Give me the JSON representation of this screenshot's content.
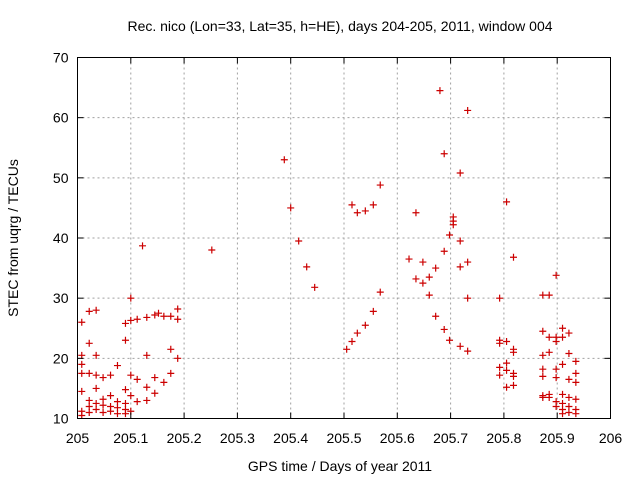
{
  "chart_data": {
    "type": "scatter",
    "title": "Rec. nico (Lon=33, Lat=35, h=HE), days 204-205, 2011, window 004",
    "xlabel": "GPS time / Days of year 2011",
    "ylabel": "STEC from uqrg / TECUs",
    "xlim": [
      205,
      206
    ],
    "ylim": [
      10,
      70
    ],
    "xticks": [
      "205",
      "205.1",
      "205.2",
      "205.3",
      "205.4",
      "205.5",
      "205.6",
      "205.7",
      "205.8",
      "205.9",
      "206"
    ],
    "yticks": [
      "10",
      "20",
      "30",
      "40",
      "50",
      "60",
      "70"
    ],
    "grid": true,
    "marker": "+",
    "color": "#cc0000",
    "points": [
      [
        205.008,
        26.0
      ],
      [
        205.008,
        20.5
      ],
      [
        205.008,
        19.0
      ],
      [
        205.008,
        17.5
      ],
      [
        205.008,
        14.5
      ],
      [
        205.008,
        11.2
      ],
      [
        205.008,
        10.5
      ],
      [
        205.022,
        27.8
      ],
      [
        205.022,
        22.5
      ],
      [
        205.022,
        17.5
      ],
      [
        205.022,
        13.0
      ],
      [
        205.022,
        12.0
      ],
      [
        205.022,
        11.0
      ],
      [
        205.035,
        28.0
      ],
      [
        205.035,
        20.5
      ],
      [
        205.035,
        17.2
      ],
      [
        205.035,
        15.0
      ],
      [
        205.035,
        12.5
      ],
      [
        205.035,
        11.5
      ],
      [
        205.048,
        16.8
      ],
      [
        205.048,
        13.2
      ],
      [
        205.048,
        12.2
      ],
      [
        205.048,
        11.0
      ],
      [
        205.062,
        17.2
      ],
      [
        205.062,
        13.8
      ],
      [
        205.062,
        12.0
      ],
      [
        205.062,
        11.2
      ],
      [
        205.075,
        18.8
      ],
      [
        205.075,
        12.8
      ],
      [
        205.075,
        11.8
      ],
      [
        205.075,
        10.8
      ],
      [
        205.09,
        25.8
      ],
      [
        205.09,
        23.0
      ],
      [
        205.09,
        14.8
      ],
      [
        205.09,
        12.5
      ],
      [
        205.09,
        11.5
      ],
      [
        205.09,
        10.8
      ],
      [
        205.1,
        30.0
      ],
      [
        205.1,
        26.3
      ],
      [
        205.1,
        17.2
      ],
      [
        205.1,
        13.8
      ],
      [
        205.1,
        11.2
      ],
      [
        205.112,
        26.5
      ],
      [
        205.112,
        16.5
      ],
      [
        205.112,
        12.8
      ],
      [
        205.122,
        38.7
      ],
      [
        205.13,
        26.8
      ],
      [
        205.13,
        20.5
      ],
      [
        205.13,
        15.2
      ],
      [
        205.13,
        13.0
      ],
      [
        205.145,
        27.2
      ],
      [
        205.145,
        16.8
      ],
      [
        205.145,
        14.2
      ],
      [
        205.152,
        27.5
      ],
      [
        205.162,
        27.0
      ],
      [
        205.162,
        16.0
      ],
      [
        205.175,
        27.0
      ],
      [
        205.175,
        21.5
      ],
      [
        205.175,
        17.5
      ],
      [
        205.188,
        28.2
      ],
      [
        205.188,
        26.5
      ],
      [
        205.188,
        20.0
      ],
      [
        205.252,
        38.0
      ],
      [
        205.388,
        53.0
      ],
      [
        205.4,
        45.0
      ],
      [
        205.415,
        39.5
      ],
      [
        205.43,
        35.2
      ],
      [
        205.445,
        31.8
      ],
      [
        205.505,
        21.5
      ],
      [
        205.515,
        45.5
      ],
      [
        205.515,
        22.8
      ],
      [
        205.525,
        44.2
      ],
      [
        205.525,
        24.2
      ],
      [
        205.54,
        44.5
      ],
      [
        205.54,
        25.5
      ],
      [
        205.555,
        45.5
      ],
      [
        205.555,
        27.8
      ],
      [
        205.568,
        48.8
      ],
      [
        205.568,
        31.0
      ],
      [
        205.622,
        36.5
      ],
      [
        205.635,
        44.2
      ],
      [
        205.635,
        33.2
      ],
      [
        205.648,
        36.0
      ],
      [
        205.648,
        32.5
      ],
      [
        205.66,
        33.5
      ],
      [
        205.66,
        30.5
      ],
      [
        205.672,
        35.0
      ],
      [
        205.672,
        27.0
      ],
      [
        205.68,
        64.5
      ],
      [
        205.688,
        54.0
      ],
      [
        205.688,
        37.8
      ],
      [
        205.688,
        24.8
      ],
      [
        205.698,
        40.5
      ],
      [
        205.698,
        23.0
      ],
      [
        205.705,
        43.5
      ],
      [
        205.705,
        42.8
      ],
      [
        205.705,
        42.2
      ],
      [
        205.718,
        50.8
      ],
      [
        205.718,
        39.5
      ],
      [
        205.718,
        35.2
      ],
      [
        205.718,
        22.0
      ],
      [
        205.732,
        61.2
      ],
      [
        205.732,
        36.0
      ],
      [
        205.732,
        30.0
      ],
      [
        205.732,
        21.2
      ],
      [
        205.792,
        30.0
      ],
      [
        205.792,
        23.0
      ],
      [
        205.792,
        22.5
      ],
      [
        205.792,
        18.5
      ],
      [
        205.792,
        17.2
      ],
      [
        205.805,
        46.0
      ],
      [
        205.805,
        22.8
      ],
      [
        205.805,
        19.2
      ],
      [
        205.805,
        18.0
      ],
      [
        205.805,
        15.2
      ],
      [
        205.818,
        36.8
      ],
      [
        205.818,
        21.5
      ],
      [
        205.818,
        21.0
      ],
      [
        205.818,
        17.5
      ],
      [
        205.818,
        17.0
      ],
      [
        205.818,
        15.5
      ],
      [
        205.873,
        30.5
      ],
      [
        205.873,
        24.5
      ],
      [
        205.873,
        20.5
      ],
      [
        205.873,
        18.2
      ],
      [
        205.873,
        17.0
      ],
      [
        205.873,
        13.8
      ],
      [
        205.873,
        13.5
      ],
      [
        205.885,
        30.5
      ],
      [
        205.885,
        23.5
      ],
      [
        205.885,
        21.0
      ],
      [
        205.885,
        14.0
      ],
      [
        205.885,
        13.5
      ],
      [
        205.898,
        33.8
      ],
      [
        205.898,
        23.5
      ],
      [
        205.898,
        22.8
      ],
      [
        205.898,
        18.2
      ],
      [
        205.898,
        16.8
      ],
      [
        205.898,
        12.8
      ],
      [
        205.898,
        12.0
      ],
      [
        205.91,
        25.0
      ],
      [
        205.91,
        23.5
      ],
      [
        205.91,
        19.0
      ],
      [
        205.91,
        14.0
      ],
      [
        205.91,
        12.5
      ],
      [
        205.91,
        11.5
      ],
      [
        205.91,
        10.8
      ],
      [
        205.922,
        24.2
      ],
      [
        205.922,
        20.8
      ],
      [
        205.922,
        16.5
      ],
      [
        205.922,
        13.5
      ],
      [
        205.922,
        12.0
      ],
      [
        205.922,
        11.0
      ],
      [
        205.935,
        19.5
      ],
      [
        205.935,
        17.5
      ],
      [
        205.935,
        16.0
      ],
      [
        205.935,
        13.2
      ],
      [
        205.935,
        11.5
      ],
      [
        205.935,
        10.8
      ]
    ]
  }
}
